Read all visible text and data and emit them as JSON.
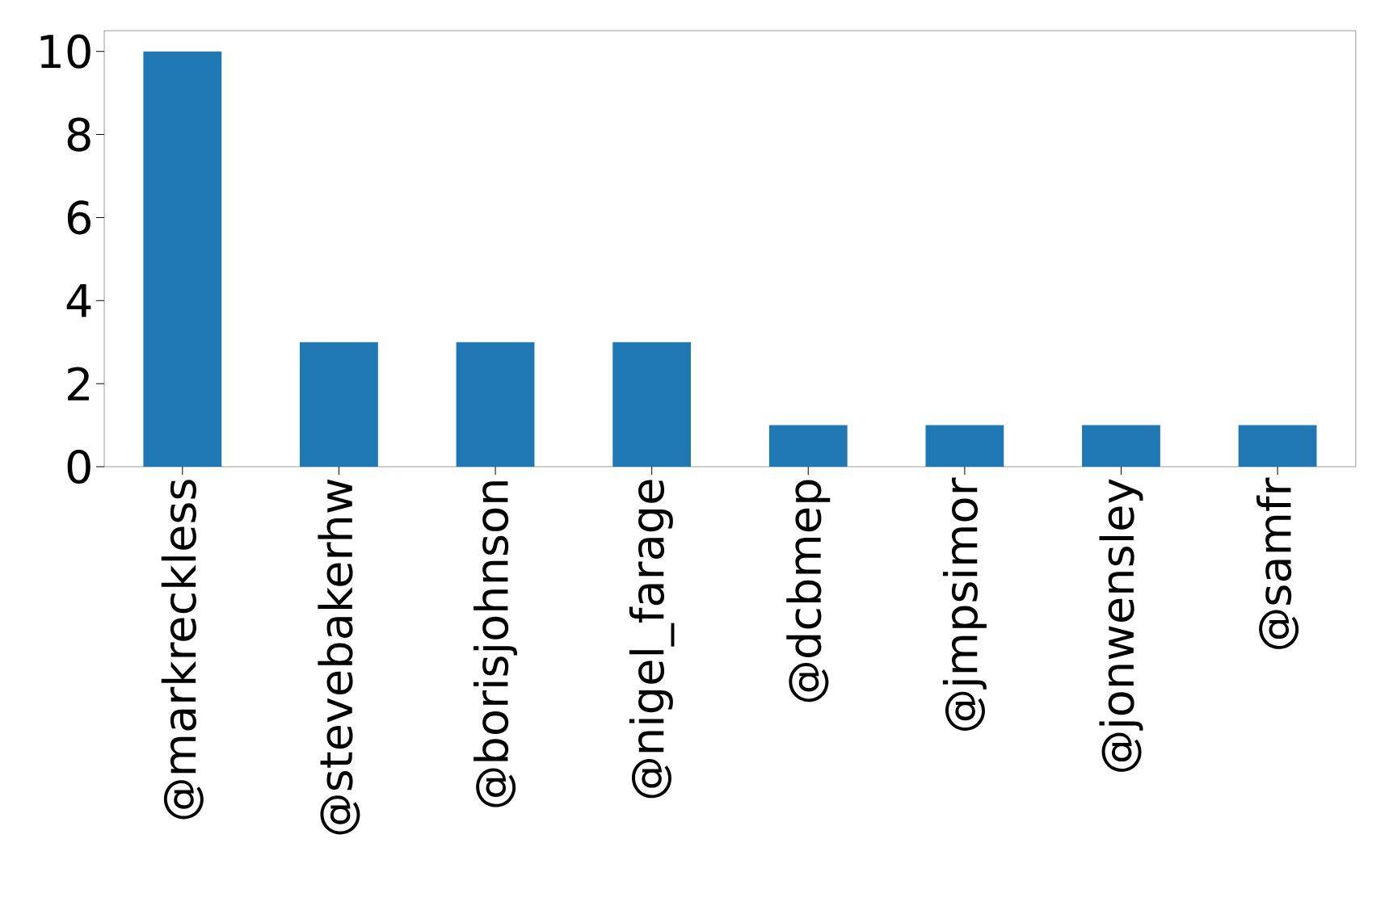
{
  "chart_data": {
    "type": "bar",
    "categories": [
      "@markreckless",
      "@stevebakerhw",
      "@borisjohnson",
      "@nigel_farage",
      "@dcbmep",
      "@jmpsimor",
      "@jonwensley",
      "@samfr"
    ],
    "values": [
      10,
      3,
      3,
      3,
      1,
      1,
      1,
      1
    ],
    "color": "#1f77b4",
    "ylim": [
      0,
      10.5
    ],
    "yticks": [
      0,
      2,
      4,
      6,
      8,
      10
    ]
  }
}
